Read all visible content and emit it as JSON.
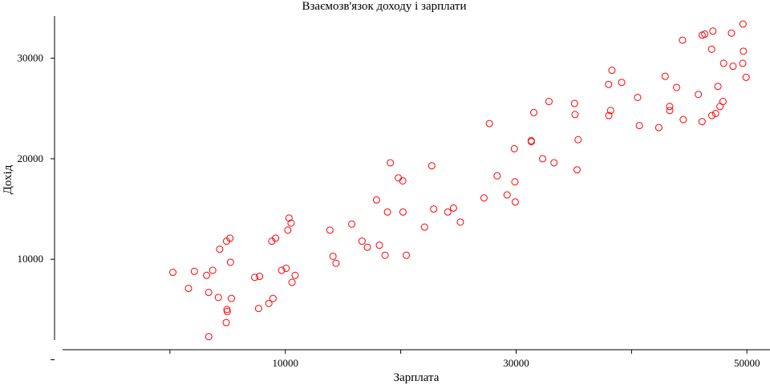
{
  "chart_data": {
    "type": "scatter",
    "title": "Взаємозв'язок доходу і зарплати",
    "xlabel": "Зарплата",
    "ylabel": "Дохід",
    "xlim": [
      -10000,
      52000
    ],
    "ylim": [
      1000,
      34200
    ],
    "xticks": [
      0,
      10000,
      20000,
      30000,
      40000,
      50000
    ],
    "xtick_labels": [
      "",
      "10000",
      "",
      "30000",
      "",
      "50000"
    ],
    "yticks": [
      0,
      10000,
      20000,
      30000
    ],
    "ytick_labels": [
      "",
      "10000",
      "20000",
      "30000"
    ],
    "grid": false,
    "marker_color": "#ff0000",
    "points": [
      [
        253,
        8700
      ],
      [
        1605,
        7100
      ],
      [
        2117,
        8800
      ],
      [
        3177,
        8400
      ],
      [
        3358,
        6700
      ],
      [
        3364,
        2300
      ],
      [
        3708,
        8900
      ],
      [
        4198,
        6200
      ],
      [
        4311,
        11000
      ],
      [
        4941,
        5000
      ],
      [
        4876,
        3700
      ],
      [
        4966,
        4800
      ],
      [
        4906,
        11800
      ],
      [
        5202,
        12100
      ],
      [
        5245,
        9700
      ],
      [
        5325,
        6100
      ],
      [
        7346,
        8200
      ],
      [
        7682,
        5100
      ],
      [
        7771,
        8300
      ],
      [
        8569,
        5600
      ],
      [
        8829,
        11800
      ],
      [
        8934,
        6100
      ],
      [
        9156,
        12100
      ],
      [
        9683,
        8900
      ],
      [
        10070,
        9100
      ],
      [
        10216,
        12900
      ],
      [
        10318,
        14100
      ],
      [
        10500,
        13600
      ],
      [
        10580,
        7700
      ],
      [
        10847,
        8400
      ],
      [
        13866,
        12900
      ],
      [
        14131,
        10300
      ],
      [
        14390,
        9600
      ],
      [
        15756,
        13500
      ],
      [
        16649,
        11800
      ],
      [
        17114,
        11200
      ],
      [
        17904,
        15900
      ],
      [
        18151,
        11400
      ],
      [
        18642,
        10400
      ],
      [
        18851,
        14700
      ],
      [
        19097,
        19600
      ],
      [
        19790,
        18100
      ],
      [
        20176,
        17800
      ],
      [
        20196,
        14700
      ],
      [
        20483,
        10400
      ],
      [
        22069,
        13200
      ],
      [
        22693,
        19300
      ],
      [
        22853,
        15000
      ],
      [
        24074,
        14700
      ],
      [
        24570,
        15100
      ],
      [
        25167,
        13700
      ],
      [
        27215,
        16100
      ],
      [
        27683,
        23500
      ],
      [
        28355,
        18300
      ],
      [
        29217,
        16400
      ],
      [
        29845,
        21000
      ],
      [
        29895,
        17700
      ],
      [
        29926,
        15700
      ],
      [
        31307,
        21800
      ],
      [
        31318,
        21700
      ],
      [
        31531,
        24600
      ],
      [
        32296,
        20000
      ],
      [
        32848,
        25700
      ],
      [
        33281,
        19600
      ],
      [
        35059,
        25500
      ],
      [
        35101,
        24400
      ],
      [
        35278,
        18900
      ],
      [
        35374,
        21900
      ],
      [
        38031,
        24300
      ],
      [
        38011,
        27400
      ],
      [
        38189,
        24800
      ],
      [
        38303,
        28800
      ],
      [
        39142,
        27600
      ],
      [
        40528,
        26100
      ],
      [
        40680,
        23300
      ],
      [
        42365,
        23100
      ],
      [
        42914,
        28200
      ],
      [
        43304,
        25200
      ],
      [
        43311,
        24800
      ],
      [
        43904,
        27100
      ],
      [
        44421,
        31800
      ],
      [
        44484,
        23900
      ],
      [
        45792,
        26400
      ],
      [
        46112,
        23700
      ],
      [
        46124,
        32300
      ],
      [
        46347,
        32400
      ],
      [
        46939,
        30900
      ],
      [
        46960,
        24300
      ],
      [
        47052,
        32700
      ],
      [
        47285,
        24500
      ],
      [
        47488,
        27200
      ],
      [
        47666,
        25200
      ],
      [
        47925,
        25700
      ],
      [
        47982,
        29500
      ],
      [
        48663,
        32500
      ],
      [
        48795,
        29200
      ],
      [
        49635,
        29500
      ],
      [
        49695,
        30700
      ],
      [
        49659,
        33400
      ],
      [
        49928,
        28100
      ]
    ]
  }
}
